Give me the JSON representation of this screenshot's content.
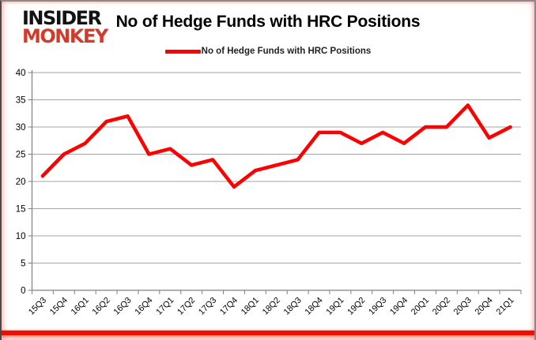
{
  "logo": {
    "line1": "INSIDER",
    "line2": "MONKEY"
  },
  "header": {
    "title": "No of Hedge Funds with HRC Positions"
  },
  "legend": {
    "label": "No of Hedge Funds with HRC Positions",
    "line_color": "#fe0000"
  },
  "colors": {
    "series_red": "#fe0000",
    "logo_red": "#d23b2a",
    "gridline": "#a6a6a6",
    "axis": "#808080",
    "tick_label": "#000000",
    "frame_bottom_red": "#ee0f00"
  },
  "chart_data": {
    "type": "line",
    "title": "No of Hedge Funds with HRC Positions",
    "categories": [
      "15Q3",
      "15Q4",
      "16Q1",
      "16Q2",
      "16Q3",
      "16Q4",
      "17Q1",
      "17Q2",
      "17Q3",
      "17Q4",
      "18Q1",
      "18Q2",
      "18Q3",
      "18Q4",
      "19Q1",
      "19Q2",
      "19Q3",
      "19Q4",
      "20Q1",
      "20Q2",
      "20Q3",
      "20Q4",
      "21Q1"
    ],
    "series": [
      {
        "name": "No of Hedge Funds with HRC Positions",
        "color": "#fe0000",
        "values": [
          21,
          25,
          27,
          31,
          32,
          25,
          26,
          23,
          24,
          19,
          22,
          23,
          24,
          29,
          29,
          27,
          29,
          27,
          30,
          30,
          34,
          28,
          30
        ]
      }
    ],
    "xlabel": "",
    "ylabel": "",
    "ylim": [
      0,
      40
    ],
    "yticks": [
      0,
      5,
      10,
      15,
      20,
      25,
      30,
      35,
      40
    ],
    "grid": true,
    "legend_position": "top",
    "x_tick_rotation": 45
  }
}
